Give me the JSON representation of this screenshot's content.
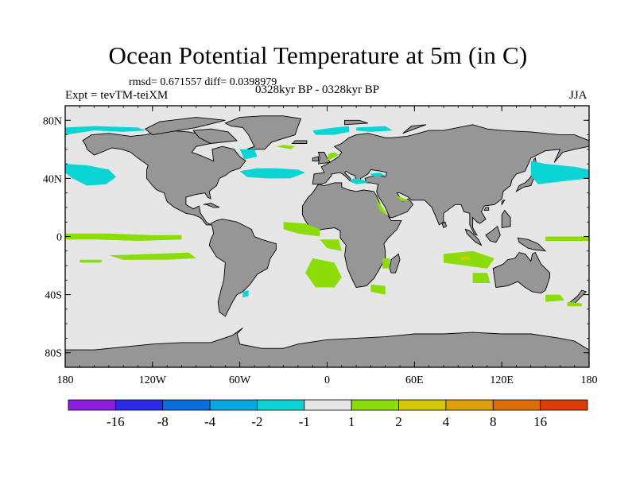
{
  "title": "Ocean Potential Temperature at 5m (in C)",
  "stats_text": "rmsd= 0.671557 diff= 0.0398979",
  "experiment_label": "Expt = tevTM-teiXM",
  "period_label": "0328kyr BP - 0328kyr BP",
  "season_label": "JJA",
  "map": {
    "projection": "cylindrical-equidistant",
    "lon_range": [
      -180,
      180
    ],
    "lat_range": [
      -90,
      90
    ],
    "land_color": "#969696",
    "ocean_color": "#e6e6e6",
    "coastline_color": "#000000",
    "lon_ticks": [
      {
        "value": -180,
        "label": "180"
      },
      {
        "value": -120,
        "label": "120W"
      },
      {
        "value": -60,
        "label": "60W"
      },
      {
        "value": 0,
        "label": "0"
      },
      {
        "value": 60,
        "label": "60E"
      },
      {
        "value": 120,
        "label": "120E"
      },
      {
        "value": 180,
        "label": "180"
      }
    ],
    "lat_ticks": [
      {
        "value": 80,
        "label": "80N"
      },
      {
        "value": 40,
        "label": "40N"
      },
      {
        "value": 0,
        "label": "0"
      },
      {
        "value": -40,
        "label": "40S"
      },
      {
        "value": -80,
        "label": "80S"
      }
    ]
  },
  "colorbar": {
    "colors": [
      "#8a1fe0",
      "#2a2ae8",
      "#0a6edc",
      "#0aa8e0",
      "#0ad4d4",
      "#e6e6e6",
      "#8cdc0a",
      "#d4c80a",
      "#dca00a",
      "#dc6e0a",
      "#dc3c0a"
    ],
    "labels": [
      "-16",
      "-8",
      "-4",
      "-2",
      "-1",
      "1",
      "2",
      "4",
      "8",
      "16"
    ]
  },
  "anomaly_colors": {
    "cool": "#0ad4d4",
    "cool_strong": "#0aa8e0",
    "warm": "#8cdc0a",
    "warm_strong": "#d4c80a"
  }
}
